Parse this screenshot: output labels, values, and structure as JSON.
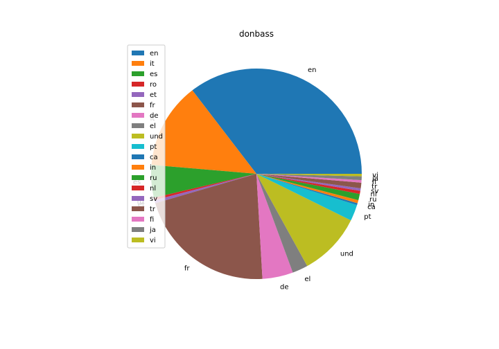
{
  "chart_data": {
    "type": "pie",
    "title": "donbass",
    "categories": [
      "en",
      "it",
      "es",
      "ro",
      "et",
      "fr",
      "de",
      "el",
      "und",
      "pt",
      "ca",
      "in",
      "ru",
      "nl",
      "sv",
      "tr",
      "fi",
      "ja",
      "vi"
    ],
    "values": [
      36.9,
      13.8,
      5.2,
      0.4,
      0.5,
      22.3,
      4.9,
      2.5,
      10.1,
      2.6,
      0.3,
      0.5,
      1.0,
      0.5,
      0.4,
      0.9,
      0.4,
      0.6,
      0.4
    ],
    "colors": [
      "#1f77b4",
      "#ff7f0e",
      "#2ca02c",
      "#d62728",
      "#9467bd",
      "#8c564b",
      "#e377c2",
      "#7f7f7f",
      "#bcbd22",
      "#17becf",
      "#1f77b4",
      "#ff7f0e",
      "#2ca02c",
      "#d62728",
      "#9467bd",
      "#8c564b",
      "#e377c2",
      "#7f7f7f",
      "#bcbd22"
    ],
    "start_angle_deg": 0,
    "direction": "counterclockwise",
    "legend_placement": "upper-left"
  }
}
